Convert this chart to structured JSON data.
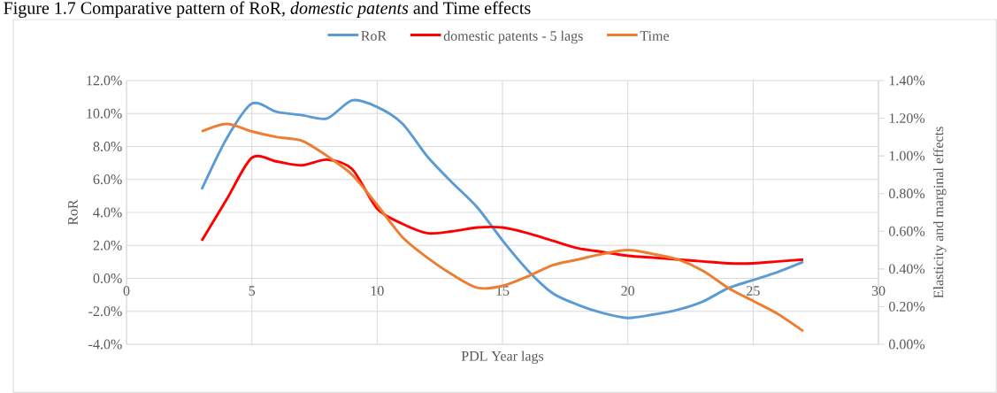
{
  "chart_data": {
    "type": "line",
    "title": "Figure 1.7 Comparative pattern of RoR, *domestic patents* and Time effects",
    "xlabel": "PDL Year lags",
    "ylabel": "RoR",
    "y2label": "Elasticity and marginal effects",
    "x": [
      3,
      4,
      5,
      6,
      7,
      8,
      9,
      10,
      11,
      12,
      13,
      14,
      15,
      16,
      17,
      18,
      19,
      20,
      21,
      22,
      23,
      24,
      25,
      26,
      27
    ],
    "series": [
      {
        "name": "RoR",
        "color": "#5b9bd5",
        "values": [
          5.4,
          8.5,
          10.6,
          10.1,
          9.9,
          9.7,
          10.8,
          10.4,
          9.4,
          7.4,
          5.8,
          4.3,
          2.3,
          0.5,
          -0.9,
          -1.6,
          -2.1,
          -2.4,
          -2.2,
          -1.9,
          -1.4,
          -0.6,
          -0.1,
          0.4,
          1.0
        ]
      },
      {
        "name": "domestic patents - 5 lags",
        "color": "#ff0000",
        "axis": "y2",
        "values": [
          0.55,
          0.77,
          0.99,
          0.97,
          0.95,
          0.98,
          0.93,
          0.72,
          0.64,
          0.59,
          0.6,
          0.62,
          0.62,
          0.59,
          0.55,
          0.51,
          0.49,
          0.47,
          0.46,
          0.45,
          0.44,
          0.43,
          0.43,
          0.44,
          0.45
        ]
      },
      {
        "name": "Time",
        "color": "#ed7d31",
        "axis": "y2",
        "values": [
          1.13,
          1.17,
          1.13,
          1.1,
          1.08,
          1.0,
          0.9,
          0.74,
          0.57,
          0.46,
          0.37,
          0.3,
          0.31,
          0.36,
          0.42,
          0.45,
          0.48,
          0.5,
          0.48,
          0.45,
          0.39,
          0.3,
          0.23,
          0.16,
          0.07
        ]
      }
    ],
    "xlim": [
      0,
      30
    ],
    "xticks": [
      0,
      5,
      10,
      15,
      20,
      25,
      30
    ],
    "ylim": [
      -4,
      12
    ],
    "yticks": [
      {
        "value": -4,
        "label": "-4.0%"
      },
      {
        "value": -2,
        "label": "-2.0%"
      },
      {
        "value": 0,
        "label": "0.0%"
      },
      {
        "value": 2,
        "label": "2.0%"
      },
      {
        "value": 4,
        "label": "4.0%"
      },
      {
        "value": 6,
        "label": "6.0%"
      },
      {
        "value": 8,
        "label": "8.0%"
      },
      {
        "value": 10,
        "label": "10.0%"
      },
      {
        "value": 12,
        "label": "12.0%"
      }
    ],
    "y2lim": [
      0,
      1.4
    ],
    "y2ticks": [
      {
        "value": 0,
        "label": "0.00%"
      },
      {
        "value": 0.2,
        "label": "0.20%"
      },
      {
        "value": 0.4,
        "label": "0.40%"
      },
      {
        "value": 0.6,
        "label": "0.60%"
      },
      {
        "value": 0.8,
        "label": "0.80%"
      },
      {
        "value": 1.0,
        "label": "1.00%"
      },
      {
        "value": 1.2,
        "label": "1.20%"
      },
      {
        "value": 1.4,
        "label": "1.40%"
      }
    ],
    "grid": true,
    "legend": "top",
    "marker": "none",
    "line_style": "solid"
  }
}
